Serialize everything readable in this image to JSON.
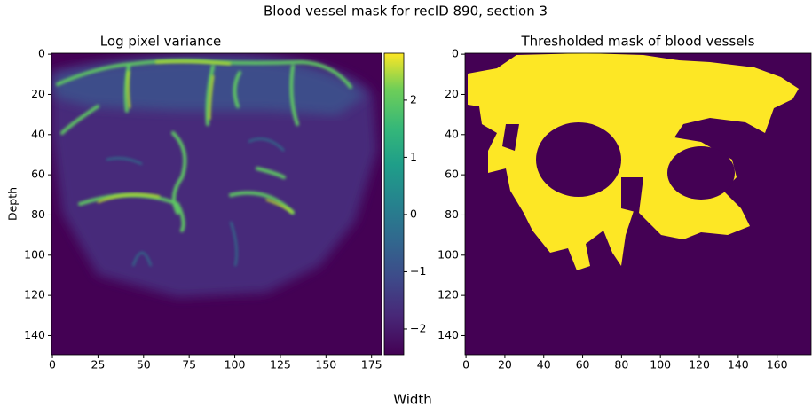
{
  "title": "Blood vessel mask for recID 890, section 3",
  "xlabel": "Width",
  "chart_data": [
    {
      "type": "heatmap",
      "title": "Log pixel variance",
      "ylabel": "Depth",
      "xlim": [
        -0.5,
        180.5
      ],
      "ylim": [
        149.5,
        -0.5
      ],
      "xticks": [
        0,
        25,
        50,
        75,
        100,
        125,
        150,
        175
      ],
      "yticks": [
        0,
        20,
        40,
        60,
        80,
        100,
        120,
        140
      ],
      "colorbar": {
        "clim": [
          -2.45,
          2.82
        ],
        "ticks": [
          {
            "value": -2,
            "label": "−2"
          },
          {
            "value": -1,
            "label": "−1"
          },
          0,
          1,
          2
        ]
      }
    },
    {
      "type": "heatmap",
      "title": "Thresholded mask of blood vessels",
      "xlim": [
        -0.5,
        177.5
      ],
      "ylim": [
        149.5,
        -0.5
      ],
      "xticks": [
        0,
        20,
        40,
        60,
        80,
        100,
        120,
        140,
        160
      ],
      "yticks": [
        0,
        20,
        40,
        60,
        80,
        100,
        120,
        140
      ]
    }
  ]
}
